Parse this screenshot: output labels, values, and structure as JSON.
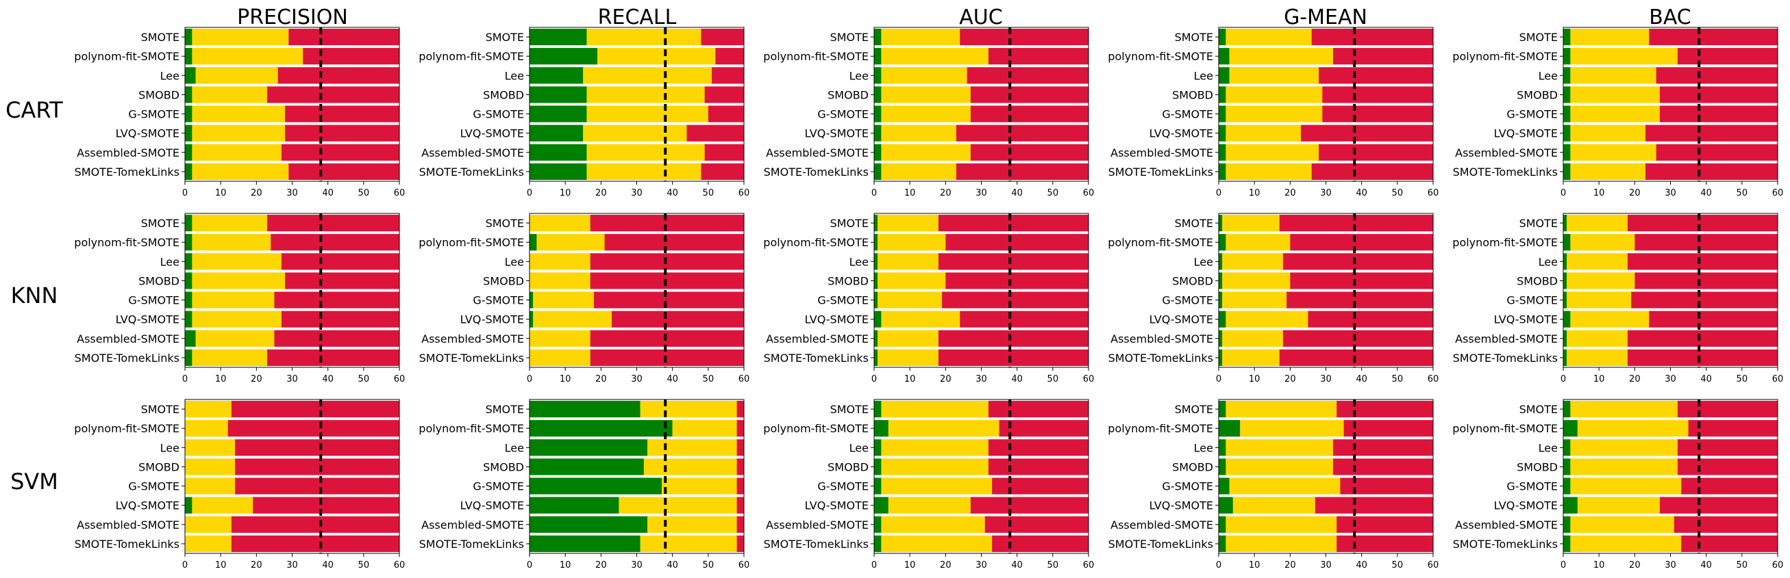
{
  "colors": {
    "win": "#008000",
    "tie": "#ffd700",
    "loss": "#dc143c",
    "reference": "#000000"
  },
  "row_labels": [
    "CART",
    "KNN",
    "SVM"
  ],
  "column_titles": [
    "PRECISION",
    "RECALL",
    "AUC",
    "G-MEAN",
    "BAC"
  ],
  "methods": [
    "SMOTE",
    "polynom-fit-SMOTE",
    "Lee",
    "SMOBD",
    "G-SMOTE",
    "LVQ-SMOTE",
    "Assembled-SMOTE",
    "SMOTE-TomekLinks"
  ],
  "chart_data": [
    {
      "type": "bar",
      "orientation": "horizontal",
      "stacked": true,
      "row": "CART",
      "metric": "PRECISION",
      "xlim": [
        0,
        60
      ],
      "xticks": [
        0,
        10,
        20,
        30,
        40,
        50,
        60
      ],
      "reference_line": 38,
      "grid": false,
      "win": [
        2,
        2,
        3,
        2,
        2,
        2,
        2,
        2
      ],
      "tie": [
        27,
        31,
        23,
        21,
        26,
        26,
        25,
        27
      ]
    },
    {
      "type": "bar",
      "orientation": "horizontal",
      "stacked": true,
      "row": "CART",
      "metric": "RECALL",
      "xlim": [
        0,
        60
      ],
      "xticks": [
        0,
        10,
        20,
        30,
        40,
        50,
        60
      ],
      "reference_line": 38,
      "grid": false,
      "win": [
        16,
        19,
        15,
        16,
        16,
        15,
        16,
        16
      ],
      "tie": [
        32,
        33,
        36,
        33,
        34,
        29,
        33,
        32
      ]
    },
    {
      "type": "bar",
      "orientation": "horizontal",
      "stacked": true,
      "row": "CART",
      "metric": "AUC",
      "xlim": [
        0,
        60
      ],
      "xticks": [
        0,
        10,
        20,
        30,
        40,
        50,
        60
      ],
      "reference_line": 38,
      "grid": false,
      "win": [
        2,
        2,
        2,
        2,
        2,
        2,
        2,
        2
      ],
      "tie": [
        22,
        30,
        24,
        25,
        25,
        21,
        25,
        21
      ]
    },
    {
      "type": "bar",
      "orientation": "horizontal",
      "stacked": true,
      "row": "CART",
      "metric": "G-MEAN",
      "xlim": [
        0,
        60
      ],
      "xticks": [
        0,
        10,
        20,
        30,
        40,
        50,
        60
      ],
      "reference_line": 38,
      "grid": false,
      "win": [
        2,
        3,
        3,
        2,
        2,
        2,
        2,
        2
      ],
      "tie": [
        24,
        29,
        25,
        27,
        27,
        21,
        26,
        24
      ]
    },
    {
      "type": "bar",
      "orientation": "horizontal",
      "stacked": true,
      "row": "CART",
      "metric": "BAC",
      "xlim": [
        0,
        60
      ],
      "xticks": [
        0,
        10,
        20,
        30,
        40,
        50,
        60
      ],
      "reference_line": 38,
      "grid": false,
      "win": [
        2,
        2,
        2,
        2,
        2,
        2,
        2,
        2
      ],
      "tie": [
        22,
        30,
        24,
        25,
        25,
        21,
        24,
        21
      ]
    },
    {
      "type": "bar",
      "orientation": "horizontal",
      "stacked": true,
      "row": "KNN",
      "metric": "PRECISION",
      "xlim": [
        0,
        60
      ],
      "xticks": [
        0,
        10,
        20,
        30,
        40,
        50,
        60
      ],
      "reference_line": 38,
      "grid": false,
      "win": [
        2,
        2,
        2,
        2,
        2,
        2,
        3,
        2
      ],
      "tie": [
        21,
        22,
        25,
        26,
        23,
        25,
        22,
        21
      ]
    },
    {
      "type": "bar",
      "orientation": "horizontal",
      "stacked": true,
      "row": "KNN",
      "metric": "RECALL",
      "xlim": [
        0,
        60
      ],
      "xticks": [
        0,
        10,
        20,
        30,
        40,
        50,
        60
      ],
      "reference_line": 38,
      "grid": false,
      "win": [
        0,
        2,
        0,
        0,
        1,
        1,
        0,
        0
      ],
      "tie": [
        17,
        19,
        17,
        17,
        17,
        22,
        17,
        17
      ]
    },
    {
      "type": "bar",
      "orientation": "horizontal",
      "stacked": true,
      "row": "KNN",
      "metric": "AUC",
      "xlim": [
        0,
        60
      ],
      "xticks": [
        0,
        10,
        20,
        30,
        40,
        50,
        60
      ],
      "reference_line": 38,
      "grid": false,
      "win": [
        1,
        1,
        1,
        1,
        1,
        2,
        1,
        1
      ],
      "tie": [
        17,
        19,
        17,
        19,
        18,
        22,
        17,
        17
      ]
    },
    {
      "type": "bar",
      "orientation": "horizontal",
      "stacked": true,
      "row": "KNN",
      "metric": "G-MEAN",
      "xlim": [
        0,
        60
      ],
      "xticks": [
        0,
        10,
        20,
        30,
        40,
        50,
        60
      ],
      "reference_line": 38,
      "grid": false,
      "win": [
        1,
        2,
        1,
        1,
        1,
        2,
        1,
        1
      ],
      "tie": [
        16,
        18,
        17,
        19,
        18,
        23,
        17,
        16
      ]
    },
    {
      "type": "bar",
      "orientation": "horizontal",
      "stacked": true,
      "row": "KNN",
      "metric": "BAC",
      "xlim": [
        0,
        60
      ],
      "xticks": [
        0,
        10,
        20,
        30,
        40,
        50,
        60
      ],
      "reference_line": 38,
      "grid": false,
      "win": [
        1,
        2,
        1,
        1,
        1,
        2,
        1,
        1
      ],
      "tie": [
        17,
        18,
        17,
        19,
        18,
        22,
        17,
        17
      ]
    },
    {
      "type": "bar",
      "orientation": "horizontal",
      "stacked": true,
      "row": "SVM",
      "metric": "PRECISION",
      "xlim": [
        0,
        60
      ],
      "xticks": [
        0,
        10,
        20,
        30,
        40,
        50,
        60
      ],
      "reference_line": 38,
      "grid": false,
      "win": [
        0,
        0,
        0,
        0,
        0,
        2,
        0,
        0
      ],
      "tie": [
        13,
        12,
        14,
        14,
        14,
        17,
        13,
        13
      ]
    },
    {
      "type": "bar",
      "orientation": "horizontal",
      "stacked": true,
      "row": "SVM",
      "metric": "RECALL",
      "xlim": [
        0,
        60
      ],
      "xticks": [
        0,
        10,
        20,
        30,
        40,
        50,
        60
      ],
      "reference_line": 38,
      "grid": false,
      "win": [
        31,
        40,
        33,
        32,
        37,
        25,
        33,
        31
      ],
      "tie": [
        27,
        18,
        25,
        26,
        21,
        33,
        25,
        27
      ]
    },
    {
      "type": "bar",
      "orientation": "horizontal",
      "stacked": true,
      "row": "SVM",
      "metric": "AUC",
      "xlim": [
        0,
        60
      ],
      "xticks": [
        0,
        10,
        20,
        30,
        40,
        50,
        60
      ],
      "reference_line": 38,
      "grid": false,
      "win": [
        2,
        4,
        2,
        2,
        2,
        4,
        2,
        2
      ],
      "tie": [
        30,
        31,
        30,
        30,
        31,
        23,
        29,
        31
      ]
    },
    {
      "type": "bar",
      "orientation": "horizontal",
      "stacked": true,
      "row": "SVM",
      "metric": "G-MEAN",
      "xlim": [
        0,
        60
      ],
      "xticks": [
        0,
        10,
        20,
        30,
        40,
        50,
        60
      ],
      "reference_line": 38,
      "grid": false,
      "win": [
        2,
        6,
        2,
        2,
        3,
        4,
        2,
        2
      ],
      "tie": [
        31,
        29,
        30,
        30,
        31,
        23,
        31,
        31
      ]
    },
    {
      "type": "bar",
      "orientation": "horizontal",
      "stacked": true,
      "row": "SVM",
      "metric": "BAC",
      "xlim": [
        0,
        60
      ],
      "xticks": [
        0,
        10,
        20,
        30,
        40,
        50,
        60
      ],
      "reference_line": 38,
      "grid": false,
      "win": [
        2,
        4,
        2,
        2,
        2,
        4,
        2,
        2
      ],
      "tie": [
        30,
        31,
        30,
        30,
        31,
        23,
        29,
        31
      ]
    }
  ]
}
